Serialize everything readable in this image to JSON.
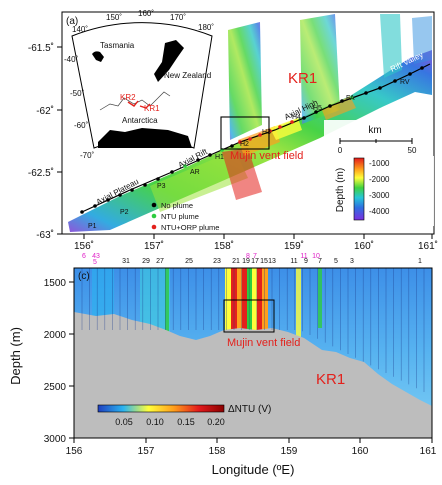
{
  "map_panel": {
    "panel_label": "(a)",
    "lat_ticks": [
      "-61.5˚",
      "-62˚",
      "-62.5˚",
      "-63˚"
    ],
    "lon_ticks": [
      "156˚",
      "157˚",
      "158˚",
      "159˚",
      "160˚",
      "161˚"
    ],
    "ridge_name": "KR1",
    "vent_field_label": "Mujin vent field",
    "segment_labels": [
      "Axial Plateau",
      "Axial Rift",
      "Axial High",
      "Flat Axis",
      "Rift Valley"
    ],
    "station_codes": [
      "P1",
      "P2",
      "P3",
      "AR",
      "H1",
      "H2",
      "H3",
      "H4",
      "H5",
      "FA",
      "RV"
    ],
    "scale_bar": {
      "unit": "km",
      "ticks": [
        "0",
        "50"
      ]
    },
    "depth_legend": {
      "title": "Depth (m)",
      "ticks": [
        "-1000",
        "-2000",
        "-3000",
        "-4000"
      ]
    },
    "plume_legend": [
      {
        "label": "No plume",
        "color": "#000000"
      },
      {
        "label": "NTU plume",
        "color": "#2ecc40"
      },
      {
        "label": "NTU+ORP plume",
        "color": "#e3211c"
      }
    ],
    "inset": {
      "lon_ticks": [
        "140˚",
        "150˚",
        "160˚",
        "170˚",
        "180˚"
      ],
      "lat_ticks": [
        "-40˚",
        "-50˚",
        "-60˚",
        "-70˚"
      ],
      "labels": [
        "Tasmania",
        "New Zealand",
        "Antarctica"
      ],
      "ridge_labels": [
        "KR2",
        "KR1"
      ]
    }
  },
  "section_panel": {
    "panel_label": "(c)",
    "station_numbers_black": [
      "31",
      "29",
      "27",
      "25",
      "23",
      "21",
      "19",
      "17",
      "15",
      "13",
      "11",
      "9",
      "7",
      "5",
      "3",
      "1"
    ],
    "station_numbers_magenta": [
      "6",
      "43",
      "5",
      "8",
      "7",
      "11",
      "10"
    ],
    "ylabel": "Depth (m)",
    "xlabel": "Longitude (ºE)",
    "y_ticks": [
      "1500",
      "2000",
      "2500",
      "3000"
    ],
    "x_ticks": [
      "156",
      "157",
      "158",
      "159",
      "160",
      "161"
    ],
    "ridge_name": "KR1",
    "vent_field_label": "Mujin vent field",
    "colorbar": {
      "title": "ΔNTU (V)",
      "ticks": [
        "0.05",
        "0.10",
        "0.15",
        "0.20"
      ]
    }
  }
}
